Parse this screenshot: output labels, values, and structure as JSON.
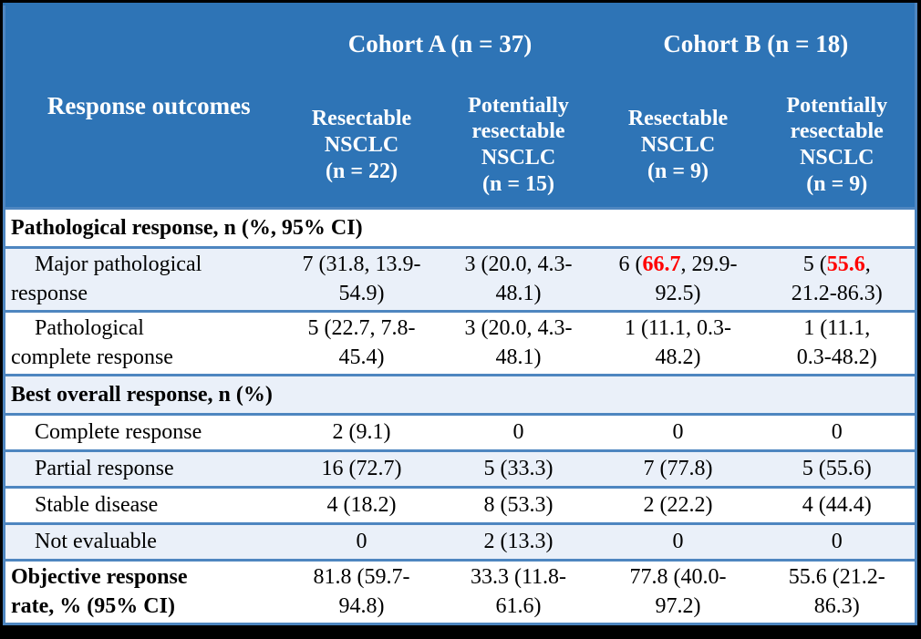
{
  "table": {
    "corner_header": "Response outcomes",
    "cohort_headers": [
      "Cohort A (n = 37)",
      "Cohort B (n = 18)"
    ],
    "column_headers": [
      "Resectable\nNSCLC\n(n = 22)",
      "Potentially\nresectable\nNSCLC\n(n = 15)",
      "Resectable\nNSCLC\n(n = 9)",
      "Potentially\nresectable\nNSCLC\n(n = 9)"
    ],
    "rows": [
      {
        "type": "section",
        "band": "white",
        "label": "Pathological response, n (%, 95% CI)"
      },
      {
        "type": "data",
        "band": "blue",
        "indent": true,
        "bold": false,
        "label": "Major pathological\nresponse",
        "cells": [
          "7 (31.8, 13.9-\n54.9)",
          "3 (20.0, 4.3-\n48.1)",
          {
            "pre": "6 (",
            "red": "66.7",
            "post": ", 29.9-\n92.5)"
          },
          {
            "pre": "5 (",
            "red": "55.6",
            "post": ",\n21.2-86.3)"
          }
        ]
      },
      {
        "type": "data",
        "band": "white",
        "indent": true,
        "bold": false,
        "label": "Pathological\ncomplete response",
        "cells": [
          "5 (22.7, 7.8-\n45.4)",
          "3 (20.0, 4.3-\n48.1)",
          "1 (11.1, 0.3-\n48.2)",
          "1 (11.1,\n0.3-48.2)"
        ]
      },
      {
        "type": "section",
        "band": "blue",
        "label": "Best overall response, n (%)"
      },
      {
        "type": "data",
        "band": "white",
        "indent": true,
        "bold": false,
        "label": "Complete response",
        "cells": [
          "2 (9.1)",
          "0",
          "0",
          "0"
        ]
      },
      {
        "type": "data",
        "band": "blue",
        "indent": true,
        "bold": false,
        "label": "Partial response",
        "cells": [
          "16 (72.7)",
          "5 (33.3)",
          "7 (77.8)",
          "5 (55.6)"
        ]
      },
      {
        "type": "data",
        "band": "white",
        "indent": true,
        "bold": false,
        "label": "Stable disease",
        "cells": [
          "4 (18.2)",
          "8 (53.3)",
          "2 (22.2)",
          "4 (44.4)"
        ]
      },
      {
        "type": "data",
        "band": "blue",
        "indent": true,
        "bold": false,
        "label": "Not evaluable",
        "cells": [
          "0",
          "2 (13.3)",
          "0",
          "0"
        ]
      },
      {
        "type": "data",
        "band": "white",
        "indent": false,
        "bold": true,
        "label": "Objective response\nrate, % (95% CI)",
        "cells": [
          "81.8 (59.7-\n94.8)",
          "33.3 (11.8-\n61.6)",
          "77.8 (40.0-\n97.2)",
          "55.6 (21.2-\n86.3)"
        ]
      }
    ],
    "colors": {
      "header_bg": "#2e74b6",
      "band_bg": "#eaf0f9",
      "border_blue": "#4e86c0",
      "highlight_red": "#ff0000",
      "header_text": "#ffffff",
      "body_text": "#000000"
    }
  }
}
